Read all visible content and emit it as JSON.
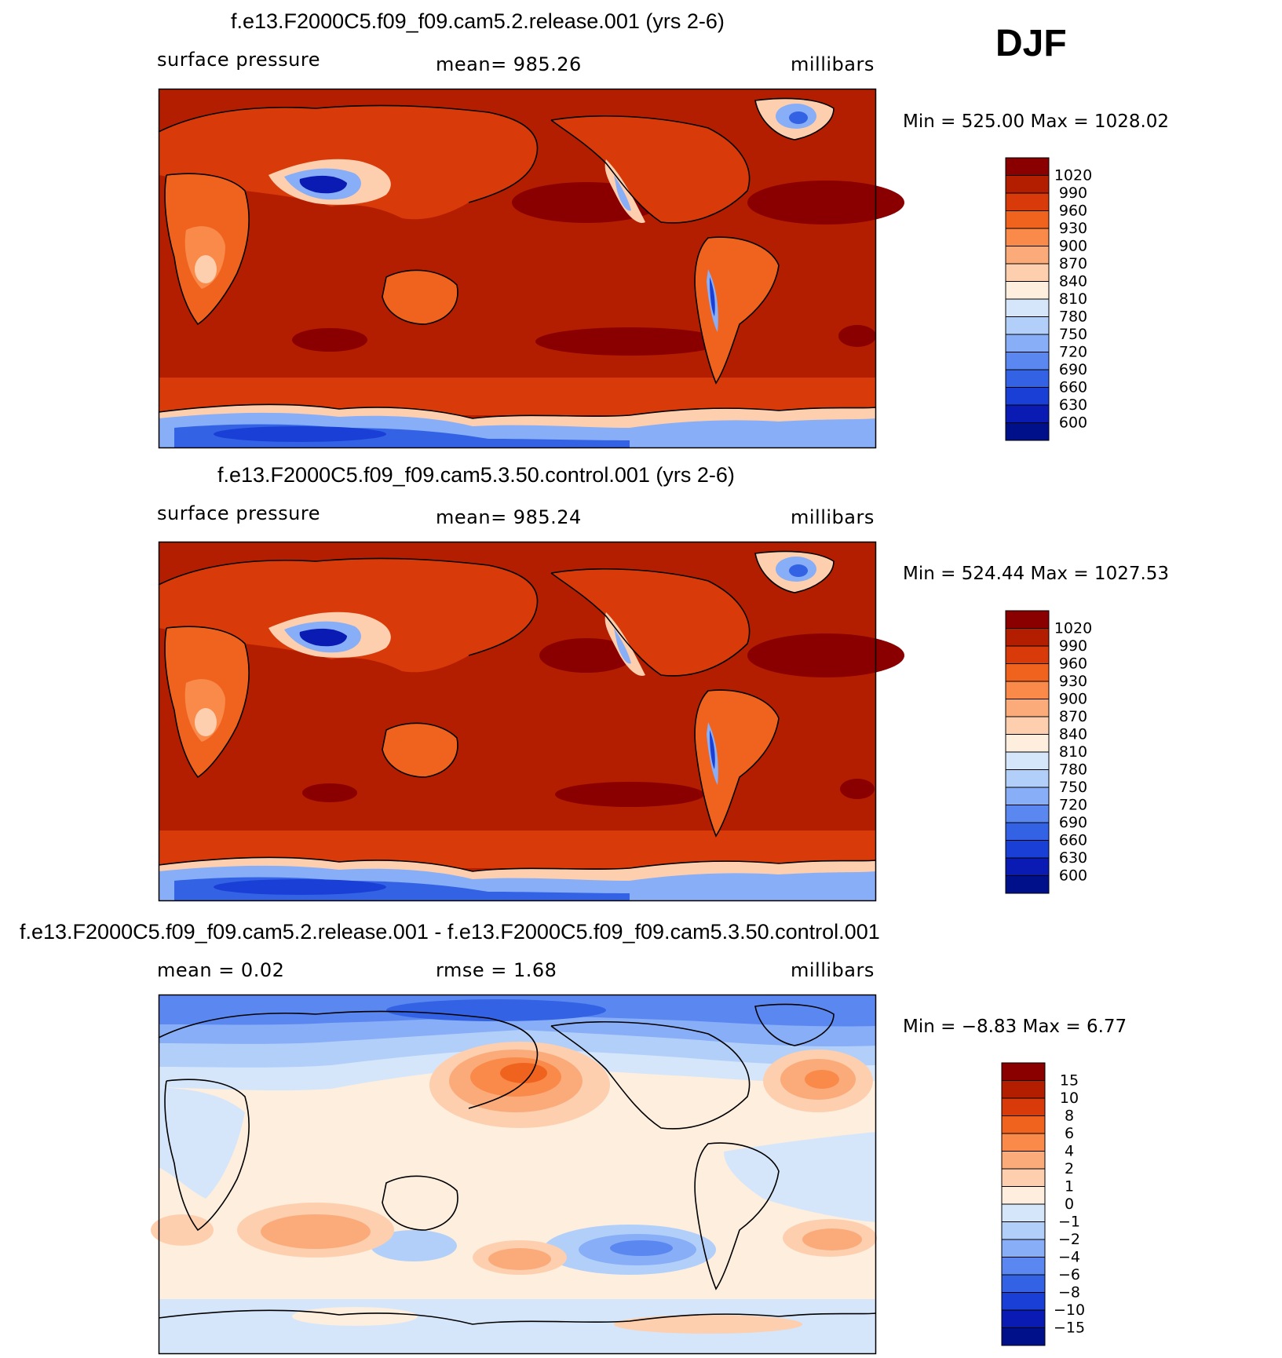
{
  "season": "DJF",
  "panels": [
    {
      "title": "f.e13.F2000C5.f09_f09.cam5.2.release.001 (yrs 2-6)",
      "left": "surface pressure",
      "center": "mean= 985.26",
      "units": "millibars",
      "minmax": "Min = 525.00 Max = 1028.02",
      "palette": "abs",
      "levels": [
        "1020",
        "990",
        "960",
        "930",
        "900",
        "870",
        "840",
        "810",
        "780",
        "750",
        "720",
        "690",
        "660",
        "630",
        "600"
      ]
    },
    {
      "title": "f.e13.F2000C5.f09_f09.cam5.3.50.control.001 (yrs 2-6)",
      "left": "surface pressure",
      "center": "mean= 985.24",
      "units": "millibars",
      "minmax": "Min = 524.44 Max = 1027.53",
      "palette": "abs",
      "levels": [
        "1020",
        "990",
        "960",
        "930",
        "900",
        "870",
        "840",
        "810",
        "780",
        "750",
        "720",
        "690",
        "660",
        "630",
        "600"
      ]
    },
    {
      "title": "f.e13.F2000C5.f09_f09.cam5.2.release.001 - f.e13.F2000C5.f09_f09.cam5.3.50.control.001",
      "left": "mean = 0.02",
      "center": "rmse = 1.68",
      "units": "millibars",
      "minmax": "Min = −8.83 Max = 6.77",
      "palette": "diff",
      "levels": [
        "15",
        "10",
        "8",
        "6",
        "4",
        "2",
        "1",
        "0",
        "−1",
        "−2",
        "−4",
        "−6",
        "−8",
        "−10",
        "−15"
      ]
    }
  ],
  "colors": {
    "abs": [
      "#8a0000",
      "#b31e00",
      "#d93a0a",
      "#f0631e",
      "#fa8a4a",
      "#fbab7a",
      "#fdcfae",
      "#fdeede",
      "#d6e6fa",
      "#b2cffa",
      "#87aef6",
      "#5a88f0",
      "#3363e4",
      "#1a3fd6",
      "#0a1bb4",
      "#00108a"
    ],
    "diff": [
      "#8a0000",
      "#b31e00",
      "#d93a0a",
      "#f0631e",
      "#fa8a4a",
      "#fbab7a",
      "#fdcfae",
      "#fdeede",
      "#d6e6fa",
      "#b2cffa",
      "#87aef6",
      "#5a88f0",
      "#3363e4",
      "#1a3fd6",
      "#0a1bb4",
      "#00108a"
    ]
  }
}
